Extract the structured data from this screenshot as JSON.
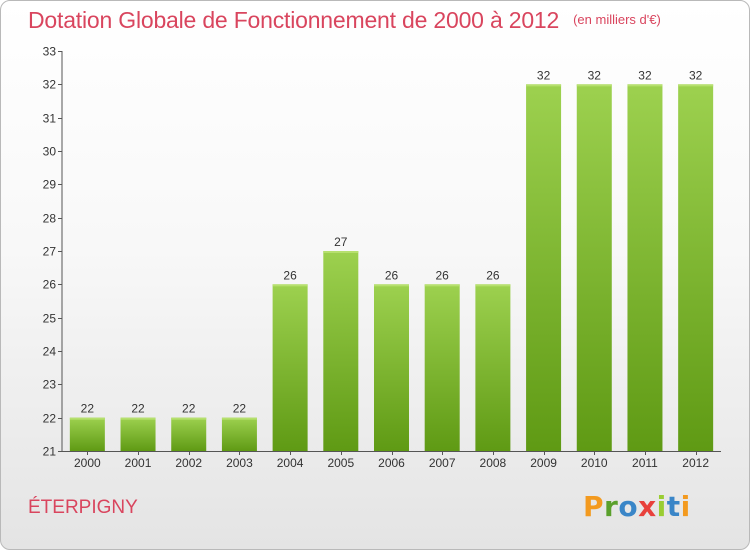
{
  "header": {
    "title": "Dotation Globale de Fonctionnement de 2000 à 2012",
    "unit": "(en milliers d'€)"
  },
  "footer": {
    "commune": "ÉTERPIGNY",
    "logo": "Proxiti"
  },
  "colors": {
    "title": "#d9455e",
    "bar_light": "#9dd14f",
    "bar_dark": "#5f9a14",
    "logo_letters": [
      "#f39a1f",
      "#5aa02c",
      "#3a86c8",
      "#e8413c",
      "#9acd32",
      "#3a86c8",
      "#f39a1f"
    ]
  },
  "chart_data": {
    "type": "bar",
    "categories": [
      "2000",
      "2001",
      "2002",
      "2003",
      "2004",
      "2005",
      "2006",
      "2007",
      "2008",
      "2009",
      "2010",
      "2011",
      "2012"
    ],
    "values": [
      22,
      22,
      22,
      22,
      26,
      27,
      26,
      26,
      26,
      32,
      32,
      32,
      32
    ],
    "data_labels": [
      "22",
      "22",
      "22",
      "22",
      "26",
      "27",
      "26",
      "26",
      "26",
      "32",
      "32",
      "32",
      "32"
    ],
    "ylim": [
      21,
      33
    ],
    "yticks": [
      21,
      22,
      23,
      24,
      25,
      26,
      27,
      28,
      29,
      30,
      31,
      32,
      33
    ],
    "title": "Dotation Globale de Fonctionnement de 2000 à 2012",
    "xlabel": "",
    "ylabel": "",
    "grid": false,
    "legend": "none"
  }
}
